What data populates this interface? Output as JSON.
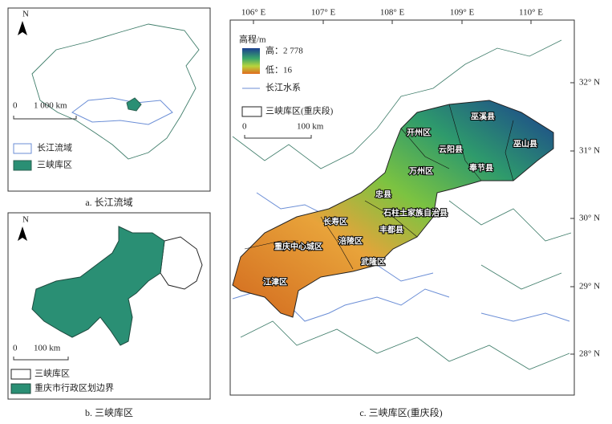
{
  "panels": [
    {
      "caption": "a. 长江流域",
      "north": "N",
      "scale": [
        "0",
        "1 000 km"
      ],
      "legend": [
        "长江流域",
        "三峡库区"
      ]
    },
    {
      "caption": "b. 三峡库区",
      "north": "N",
      "scale": [
        "0",
        "100 km"
      ],
      "legend": [
        "三峡库区",
        "重庆市行政区划边界"
      ]
    },
    {
      "caption": "c. 三峡库区(重庆段)",
      "lon_labels": [
        "106° E",
        "107° E",
        "108° E",
        "109° E",
        "110° E"
      ],
      "lat_labels": [
        "32° N",
        "31° N",
        "30° N",
        "29° N",
        "28° N"
      ],
      "legend_title": "高程/m",
      "legend": [
        "高：2 778",
        "低：16",
        "长江水系",
        "三峡库区(重庆段)"
      ],
      "scale": [
        "0",
        "100 km"
      ],
      "districts": [
        "巫溪县",
        "开州区",
        "云阳县",
        "巫山县",
        "奉节县",
        "万州区",
        "忠县",
        "石柱土家族自治县",
        "长寿区",
        "丰都县",
        "重庆中心城区",
        "涪陵区",
        "武隆区",
        "江津区"
      ]
    }
  ]
}
